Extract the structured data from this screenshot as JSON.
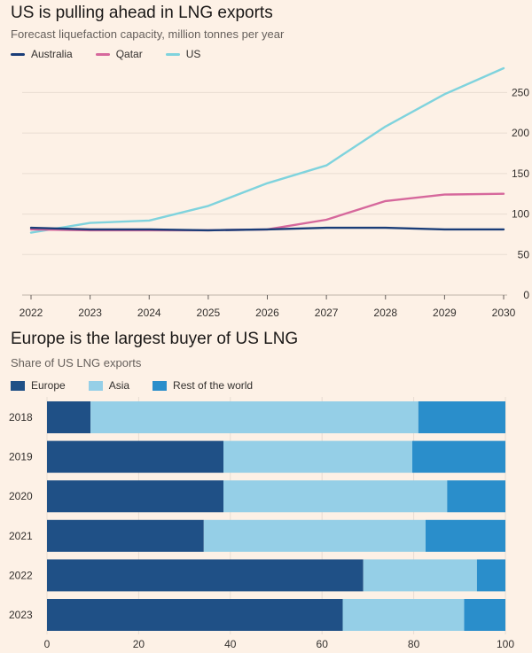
{
  "chart_data": [
    {
      "type": "line",
      "title": "US is pulling ahead in LNG exports",
      "subtitle": "Forecast liquefaction capacity, million tonnes per year",
      "x": [
        2022,
        2023,
        2024,
        2025,
        2026,
        2027,
        2028,
        2029,
        2030
      ],
      "ylim": [
        0,
        280
      ],
      "yticks": [
        0,
        50,
        100,
        150,
        200,
        250
      ],
      "grid": true,
      "legend_position": "top-left",
      "series": [
        {
          "name": "Australia",
          "color": "#1a3d78",
          "values": [
            83,
            81,
            81,
            80,
            81,
            83,
            83,
            81,
            81
          ]
        },
        {
          "name": "Qatar",
          "color": "#d6689c",
          "values": [
            81,
            80,
            80,
            80,
            81,
            93,
            116,
            124,
            125
          ]
        },
        {
          "name": "US",
          "color": "#7fd3dd",
          "values": [
            77,
            89,
            92,
            110,
            138,
            160,
            208,
            248,
            280
          ]
        }
      ]
    },
    {
      "type": "bar",
      "orientation": "horizontal",
      "stacked": true,
      "title": "Europe is the largest buyer of US LNG",
      "subtitle": "Share of US LNG exports",
      "categories": [
        "2018",
        "2019",
        "2020",
        "2021",
        "2022",
        "2023"
      ],
      "xlim": [
        0,
        100
      ],
      "xticks": [
        0,
        20,
        40,
        60,
        80,
        100
      ],
      "legend_position": "top-left",
      "series": [
        {
          "name": "Europe",
          "color": "#1f5086",
          "values": [
            9.5,
            38.5,
            38.5,
            34.2,
            69,
            64.5
          ]
        },
        {
          "name": "Asia",
          "color": "#95cfe7",
          "values": [
            71.5,
            41.2,
            48.8,
            48.4,
            24.8,
            26.5
          ]
        },
        {
          "name": "Rest of the world",
          "color": "#2a8ecb",
          "values": [
            19,
            20.3,
            12.7,
            17.4,
            6.2,
            9
          ]
        }
      ]
    }
  ]
}
